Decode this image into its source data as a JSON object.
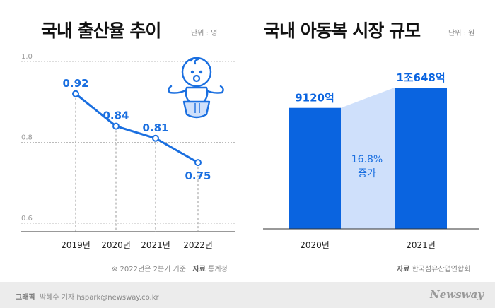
{
  "left": {
    "title": "국내 출산율 추이",
    "unit": "단위 : 명",
    "note_prefix": "※ 2022년은 2분기 기준",
    "source_label": "자료",
    "source": "통계청"
  },
  "right": {
    "title": "국내 아동복 시장 규모",
    "unit": "단위 : 원",
    "source_label": "자료",
    "source": "한국섬유산업연합회",
    "growth_pct": "16.8%",
    "growth_word": "증가"
  },
  "footer": {
    "credit_label": "그래픽",
    "credit": "박혜수 기자 hspark@newsway.co.kr",
    "logo": "Newsway"
  },
  "colors": {
    "accent": "#1a6fe0",
    "bar": "#0a64e0",
    "band": "#cfe0fb"
  },
  "chart_data": [
    {
      "type": "line",
      "title": "국내 출산율 추이",
      "x": [
        "2019년",
        "2020년",
        "2021년",
        "2022년"
      ],
      "y": [
        0.92,
        0.84,
        0.81,
        0.75
      ],
      "data_labels": [
        "0.92",
        "0.84",
        "0.81",
        "0.75"
      ],
      "yticks": [
        "1.0",
        "0.8",
        "0.6"
      ],
      "ylim": [
        0.6,
        1.0
      ],
      "grid": true
    },
    {
      "type": "bar",
      "title": "국내 아동복 시장 규모",
      "categories": [
        "2020년",
        "2021년"
      ],
      "values": [
        9120,
        10648
      ],
      "data_labels": [
        "9120억",
        "1조648억"
      ],
      "annotation": "16.8% 증가"
    }
  ]
}
